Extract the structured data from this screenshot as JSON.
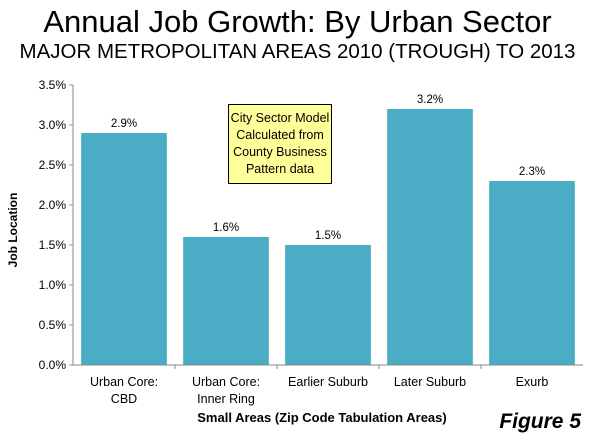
{
  "chart_data": {
    "type": "bar",
    "title": "Annual Job Growth: By Urban Sector",
    "subtitle": "MAJOR METROPOLITAN AREAS 2010 (TROUGH) TO 2013",
    "xlabel": "Small Areas (Zip Code Tabulation Areas)",
    "ylabel": "Job Location",
    "categories": [
      [
        "Urban Core:",
        "CBD"
      ],
      [
        "Urban Core:",
        "Inner Ring"
      ],
      [
        "Earlier Suburb"
      ],
      [
        "Later Suburb"
      ],
      [
        "Exurb"
      ]
    ],
    "values": [
      2.9,
      1.6,
      1.5,
      3.2,
      2.3
    ],
    "data_labels": [
      "2.9%",
      "1.6%",
      "1.5%",
      "3.2%",
      "2.3%"
    ],
    "ylim": [
      0,
      3.5
    ],
    "yticks": [
      "0.0%",
      "0.5%",
      "1.0%",
      "1.5%",
      "2.0%",
      "2.5%",
      "3.0%",
      "3.5%"
    ],
    "ytick_values": [
      0,
      0.5,
      1.0,
      1.5,
      2.0,
      2.5,
      3.0,
      3.5
    ],
    "bar_color": "#4bacc6",
    "grid": false,
    "annotation": [
      "City Sector Model",
      "Calculated from",
      "County Business",
      "Pattern data"
    ],
    "annotation_color": "#ffff99"
  },
  "figure_label": "Figure 5"
}
